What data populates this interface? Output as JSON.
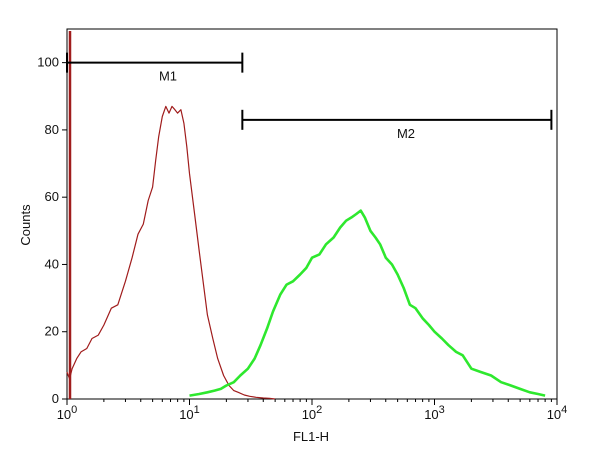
{
  "chart_data": {
    "type": "line",
    "title": "",
    "xlabel": "FL1-H",
    "ylabel": "Counts",
    "x_scale": "log",
    "xlim": [
      1,
      10000
    ],
    "ylim": [
      0,
      110
    ],
    "grid": false,
    "x_ticks": [
      {
        "value": 1,
        "base": "10",
        "exp": "0"
      },
      {
        "value": 10,
        "base": "10",
        "exp": "1"
      },
      {
        "value": 100,
        "base": "10",
        "exp": "2"
      },
      {
        "value": 1000,
        "base": "10",
        "exp": "3"
      },
      {
        "value": 10000,
        "base": "10",
        "exp": "4"
      }
    ],
    "y_ticks": [
      0,
      20,
      40,
      60,
      80,
      100
    ],
    "markers": [
      {
        "label": "M1",
        "x_start": 1,
        "x_end": 27,
        "y": 100
      },
      {
        "label": "M2",
        "x_start": 27,
        "x_end": 9000,
        "y": 83
      }
    ],
    "series": [
      {
        "color": "#a01c1c",
        "x": [
          1,
          1.05,
          1.1,
          1.2,
          1.3,
          1.45,
          1.6,
          1.8,
          2.0,
          2.3,
          2.6,
          3.0,
          3.4,
          3.8,
          4.2,
          4.6,
          5.0,
          5.3,
          5.6,
          6.0,
          6.4,
          6.8,
          7.2,
          7.6,
          8.0,
          8.5,
          9.0,
          9.5,
          10,
          11,
          12,
          13,
          14,
          15.5,
          17,
          19,
          21,
          23,
          25,
          28,
          31,
          35,
          40,
          45,
          50
        ],
        "y": [
          8,
          6,
          9,
          12,
          14,
          15,
          18,
          19,
          22,
          27,
          28,
          35,
          42,
          49,
          52,
          59,
          63,
          71,
          78,
          84,
          87,
          85,
          87,
          86,
          85,
          86,
          82,
          75,
          67,
          55,
          44,
          34,
          25,
          18,
          12,
          7,
          4,
          2.5,
          2,
          1.2,
          0.8,
          0.5,
          0.3,
          0.2,
          0
        ]
      },
      {
        "color": "#2ee82e",
        "x": [
          10,
          12,
          14,
          16,
          18,
          20,
          23,
          26,
          30,
          34,
          38,
          43,
          48,
          55,
          62,
          70,
          80,
          90,
          100,
          115,
          130,
          150,
          170,
          190,
          210,
          230,
          250,
          270,
          300,
          330,
          360,
          400,
          450,
          500,
          560,
          630,
          700,
          800,
          900,
          1000,
          1150,
          1300,
          1500,
          1700,
          2000,
          2400,
          2900,
          3500,
          4200,
          5000,
          6000,
          7000,
          8000
        ],
        "y": [
          1,
          1.5,
          2,
          2.5,
          3,
          4,
          5,
          7,
          9,
          12,
          16,
          21,
          26,
          31,
          34,
          35,
          37,
          39,
          42,
          43,
          46,
          48,
          51,
          53,
          54,
          55,
          56,
          54,
          50,
          48,
          46,
          42,
          40,
          37,
          33,
          28,
          27,
          24,
          22,
          20,
          18,
          16,
          14,
          13,
          9,
          8,
          7,
          5,
          4,
          3,
          2,
          1.5,
          1
        ]
      }
    ]
  }
}
